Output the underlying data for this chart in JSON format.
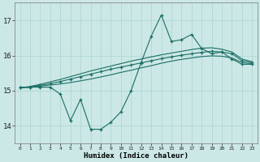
{
  "xlabel": "Humidex (Indice chaleur)",
  "background_color": "#cce8e6",
  "grid_color": "#aad4d0",
  "line_color": "#1a6e65",
  "x_ticks": [
    0,
    1,
    2,
    3,
    4,
    5,
    6,
    7,
    8,
    9,
    10,
    11,
    12,
    13,
    14,
    15,
    16,
    17,
    18,
    19,
    20,
    21,
    22,
    23
  ],
  "y_ticks": [
    14,
    15,
    16,
    17
  ],
  "ylim": [
    13.5,
    17.5
  ],
  "xlim": [
    -0.5,
    23.5
  ],
  "line_main": {
    "x": [
      0,
      1,
      2,
      3,
      4,
      5,
      6,
      7,
      8,
      9,
      10,
      11,
      12,
      13,
      14,
      15,
      16,
      17,
      18,
      19,
      20,
      21,
      22,
      23
    ],
    "y": [
      15.1,
      15.1,
      15.1,
      15.1,
      14.9,
      14.15,
      14.75,
      13.9,
      13.9,
      14.1,
      14.4,
      15.0,
      15.8,
      16.55,
      17.15,
      16.4,
      16.45,
      16.6,
      16.2,
      16.05,
      16.1,
      15.9,
      15.75,
      15.75
    ]
  },
  "line_reg1": {
    "x": [
      0,
      1,
      2,
      3,
      4,
      5,
      6,
      7,
      8,
      9,
      10,
      11,
      12,
      13,
      14,
      15,
      16,
      17,
      18,
      19,
      20,
      21,
      22,
      23
    ],
    "y": [
      15.08,
      15.1,
      15.15,
      15.2,
      15.26,
      15.33,
      15.4,
      15.47,
      15.54,
      15.61,
      15.67,
      15.73,
      15.79,
      15.85,
      15.91,
      15.96,
      16.01,
      16.05,
      16.09,
      16.12,
      16.1,
      16.05,
      15.85,
      15.8
    ]
  },
  "line_reg2": {
    "x": [
      0,
      1,
      2,
      3,
      4,
      5,
      6,
      7,
      8,
      9,
      10,
      11,
      12,
      13,
      14,
      15,
      16,
      17,
      18,
      19,
      20,
      21,
      22,
      23
    ],
    "y": [
      15.08,
      15.12,
      15.18,
      15.25,
      15.32,
      15.4,
      15.48,
      15.56,
      15.63,
      15.7,
      15.77,
      15.84,
      15.9,
      15.96,
      16.02,
      16.07,
      16.12,
      16.17,
      16.21,
      16.22,
      16.18,
      16.1,
      15.9,
      15.82
    ]
  },
  "line_reg3": {
    "x": [
      0,
      1,
      2,
      3,
      4,
      5,
      6,
      7,
      8,
      9,
      10,
      11,
      12,
      13,
      14,
      15,
      16,
      17,
      18,
      19,
      20,
      21,
      22,
      23
    ],
    "y": [
      15.08,
      15.1,
      15.13,
      15.16,
      15.19,
      15.23,
      15.28,
      15.33,
      15.39,
      15.45,
      15.52,
      15.58,
      15.65,
      15.71,
      15.78,
      15.84,
      15.89,
      15.93,
      15.97,
      15.99,
      15.98,
      15.93,
      15.8,
      15.76
    ]
  }
}
